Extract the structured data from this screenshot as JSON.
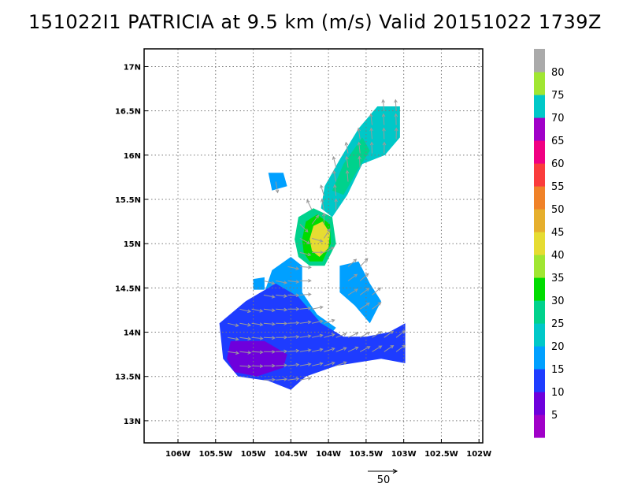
{
  "title": "151022I1 PATRICIA at 9.5 km (m/s) Valid 20151022 1739Z",
  "chart_data": {
    "type": "heatmap",
    "title": "151022I1 PATRICIA at 9.5 km (m/s) Valid 20151022 1739Z",
    "units": "m/s",
    "x_ticks": [
      "106W",
      "105.5W",
      "105W",
      "104.5W",
      "104W",
      "103.5W",
      "103W",
      "102.5W",
      "102W"
    ],
    "y_ticks": [
      "13N",
      "13.5N",
      "14N",
      "14.5N",
      "15N",
      "15.5N",
      "16N",
      "16.5N",
      "17N"
    ],
    "xlim": [
      -106.45,
      -101.95
    ],
    "ylim": [
      12.75,
      17.2
    ],
    "grid": true,
    "colorbar": {
      "levels": [
        0,
        5,
        10,
        15,
        20,
        25,
        30,
        35,
        40,
        45,
        50,
        55,
        60,
        65,
        70,
        75,
        80,
        85
      ],
      "labels": [
        "5",
        "10",
        "15",
        "20",
        "25",
        "30",
        "35",
        "40",
        "45",
        "50",
        "55",
        "60",
        "65",
        "70",
        "75",
        "80"
      ],
      "colors": [
        "#a000c8",
        "#6e00dc",
        "#1e3cff",
        "#00a0ff",
        "#00c8c8",
        "#00d28c",
        "#00dc00",
        "#a0e632",
        "#e6dc32",
        "#e6af2d",
        "#f08228",
        "#fa3c3c",
        "#f00082",
        "#a000c8",
        "#00c8c8",
        "#a0e632",
        "#aaaaaa"
      ]
    },
    "vector_reference": {
      "label": "50",
      "speed": 50
    },
    "regions": [
      {
        "name": "northeast band outer",
        "level": 20,
        "poly": [
          [
            -103.05,
            16.55
          ],
          [
            -103.35,
            16.55
          ],
          [
            -103.6,
            16.3
          ],
          [
            -103.85,
            15.95
          ],
          [
            -104.05,
            15.65
          ],
          [
            -104.1,
            15.4
          ],
          [
            -103.95,
            15.3
          ],
          [
            -103.75,
            15.55
          ],
          [
            -103.55,
            15.9
          ],
          [
            -103.25,
            16.0
          ],
          [
            -103.05,
            16.2
          ]
        ]
      },
      {
        "name": "northeast band inner",
        "level": 25,
        "poly": [
          [
            -103.55,
            16.2
          ],
          [
            -103.8,
            15.9
          ],
          [
            -103.95,
            15.6
          ],
          [
            -103.8,
            15.55
          ],
          [
            -103.6,
            15.85
          ],
          [
            -103.45,
            16.05
          ]
        ]
      },
      {
        "name": "eyewall outer",
        "level": 25,
        "poly": [
          [
            -104.45,
            15.05
          ],
          [
            -104.4,
            15.3
          ],
          [
            -104.2,
            15.4
          ],
          [
            -103.95,
            15.3
          ],
          [
            -103.9,
            15.0
          ],
          [
            -104.05,
            14.75
          ],
          [
            -104.25,
            14.75
          ],
          [
            -104.4,
            14.85
          ]
        ]
      },
      {
        "name": "eyewall ring",
        "level": 30,
        "poly": [
          [
            -104.35,
            15.05
          ],
          [
            -104.3,
            15.25
          ],
          [
            -104.15,
            15.33
          ],
          [
            -103.98,
            15.22
          ],
          [
            -103.97,
            15.0
          ],
          [
            -104.08,
            14.8
          ],
          [
            -104.25,
            14.8
          ],
          [
            -104.33,
            14.9
          ]
        ]
      },
      {
        "name": "eyewall core",
        "level": 40,
        "poly": [
          [
            -104.25,
            15.05
          ],
          [
            -104.2,
            15.2
          ],
          [
            -104.08,
            15.25
          ],
          [
            -103.98,
            15.12
          ],
          [
            -104.0,
            14.95
          ],
          [
            -104.12,
            14.85
          ],
          [
            -104.22,
            14.92
          ]
        ]
      },
      {
        "name": "central band",
        "level": 15,
        "poly": [
          [
            -104.75,
            14.7
          ],
          [
            -104.5,
            14.85
          ],
          [
            -104.35,
            14.75
          ],
          [
            -104.35,
            14.45
          ],
          [
            -104.15,
            14.2
          ],
          [
            -103.9,
            14.05
          ],
          [
            -104.05,
            13.9
          ],
          [
            -104.35,
            14.1
          ],
          [
            -104.6,
            14.35
          ],
          [
            -104.85,
            14.45
          ]
        ]
      },
      {
        "name": "east patch",
        "level": 15,
        "poly": [
          [
            -103.85,
            14.75
          ],
          [
            -103.6,
            14.8
          ],
          [
            -103.45,
            14.55
          ],
          [
            -103.3,
            14.35
          ],
          [
            -103.45,
            14.1
          ],
          [
            -103.65,
            14.3
          ],
          [
            -103.85,
            14.45
          ]
        ]
      },
      {
        "name": "southwest shelf",
        "level": 10,
        "poly": [
          [
            -105.45,
            14.1
          ],
          [
            -105.1,
            14.35
          ],
          [
            -104.7,
            14.55
          ],
          [
            -104.4,
            14.4
          ],
          [
            -104.1,
            14.1
          ],
          [
            -103.8,
            13.95
          ],
          [
            -103.5,
            13.95
          ],
          [
            -103.2,
            14.0
          ],
          [
            -102.98,
            14.1
          ],
          [
            -102.98,
            13.65
          ],
          [
            -103.3,
            13.7
          ],
          [
            -103.9,
            13.62
          ],
          [
            -104.3,
            13.5
          ],
          [
            -104.5,
            13.35
          ],
          [
            -104.8,
            13.45
          ],
          [
            -105.2,
            13.5
          ],
          [
            -105.4,
            13.7
          ]
        ]
      },
      {
        "name": "southwest weak core",
        "level": 5,
        "poly": [
          [
            -105.3,
            13.9
          ],
          [
            -104.85,
            13.9
          ],
          [
            -104.55,
            13.75
          ],
          [
            -104.6,
            13.6
          ],
          [
            -104.95,
            13.5
          ],
          [
            -105.25,
            13.55
          ],
          [
            -105.35,
            13.7
          ]
        ]
      },
      {
        "name": "west islet",
        "level": 15,
        "poly": [
          [
            -104.8,
            15.8
          ],
          [
            -104.6,
            15.8
          ],
          [
            -104.55,
            15.65
          ],
          [
            -104.75,
            15.6
          ]
        ]
      },
      {
        "name": "far west speck",
        "level": 15,
        "poly": [
          [
            -105.0,
            14.6
          ],
          [
            -104.85,
            14.62
          ],
          [
            -104.85,
            14.48
          ],
          [
            -105.0,
            14.48
          ]
        ]
      }
    ]
  }
}
